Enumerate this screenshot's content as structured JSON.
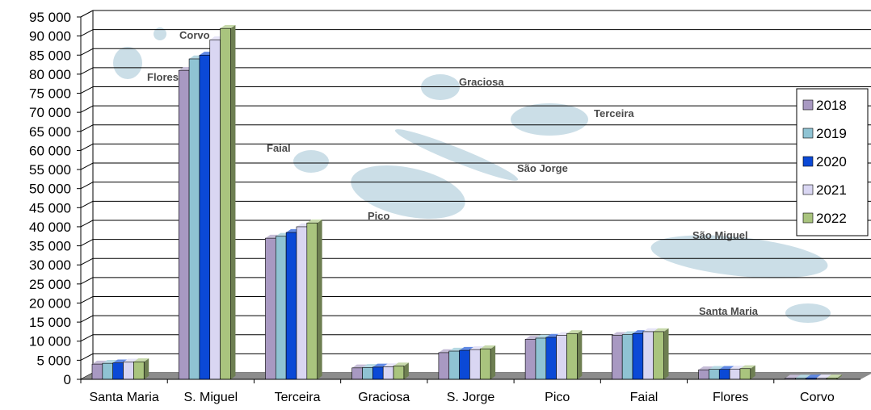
{
  "chart_data": {
    "type": "bar",
    "categories": [
      "Santa Maria",
      "S. Miguel",
      "Terceira",
      "Graciosa",
      "S. Jorge",
      "Pico",
      "Faial",
      "Flores",
      "Corvo"
    ],
    "series": [
      {
        "name": "2018",
        "values": [
          4000,
          81000,
          37000,
          3000,
          7000,
          10500,
          11500,
          2500,
          300
        ]
      },
      {
        "name": "2019",
        "values": [
          4200,
          84000,
          37500,
          3100,
          7400,
          10800,
          11700,
          2600,
          320
        ]
      },
      {
        "name": "2020",
        "values": [
          4300,
          85000,
          38500,
          3200,
          7600,
          11000,
          12000,
          2600,
          340
        ]
      },
      {
        "name": "2021",
        "values": [
          4500,
          89000,
          40000,
          3300,
          7800,
          11500,
          12500,
          2700,
          350
        ]
      },
      {
        "name": "2022",
        "values": [
          4600,
          92000,
          41000,
          3500,
          8000,
          12000,
          12500,
          2800,
          360
        ]
      }
    ],
    "ylim": [
      0,
      95000
    ],
    "yticks": [
      "0",
      "5 000",
      "10 000",
      "15 000",
      "20 000",
      "25 000",
      "30 000",
      "35 000",
      "40 000",
      "45 000",
      "50 000",
      "55 000",
      "60 000",
      "65 000",
      "70 000",
      "75 000",
      "80 000",
      "85 000",
      "90 000",
      "95 000"
    ],
    "legend_position": "right",
    "grid": true,
    "colors": {
      "2018": "#a899c2",
      "2019": "#8fc3d3",
      "2020": "#0b49d6",
      "2021": "#d9d6f2",
      "2022": "#a9c47e"
    },
    "background_map_labels": [
      "Corvo",
      "Flores",
      "Graciosa",
      "Terceira",
      "Faial",
      "São Jorge",
      "Pico",
      "São Miguel",
      "Santa Maria"
    ]
  }
}
